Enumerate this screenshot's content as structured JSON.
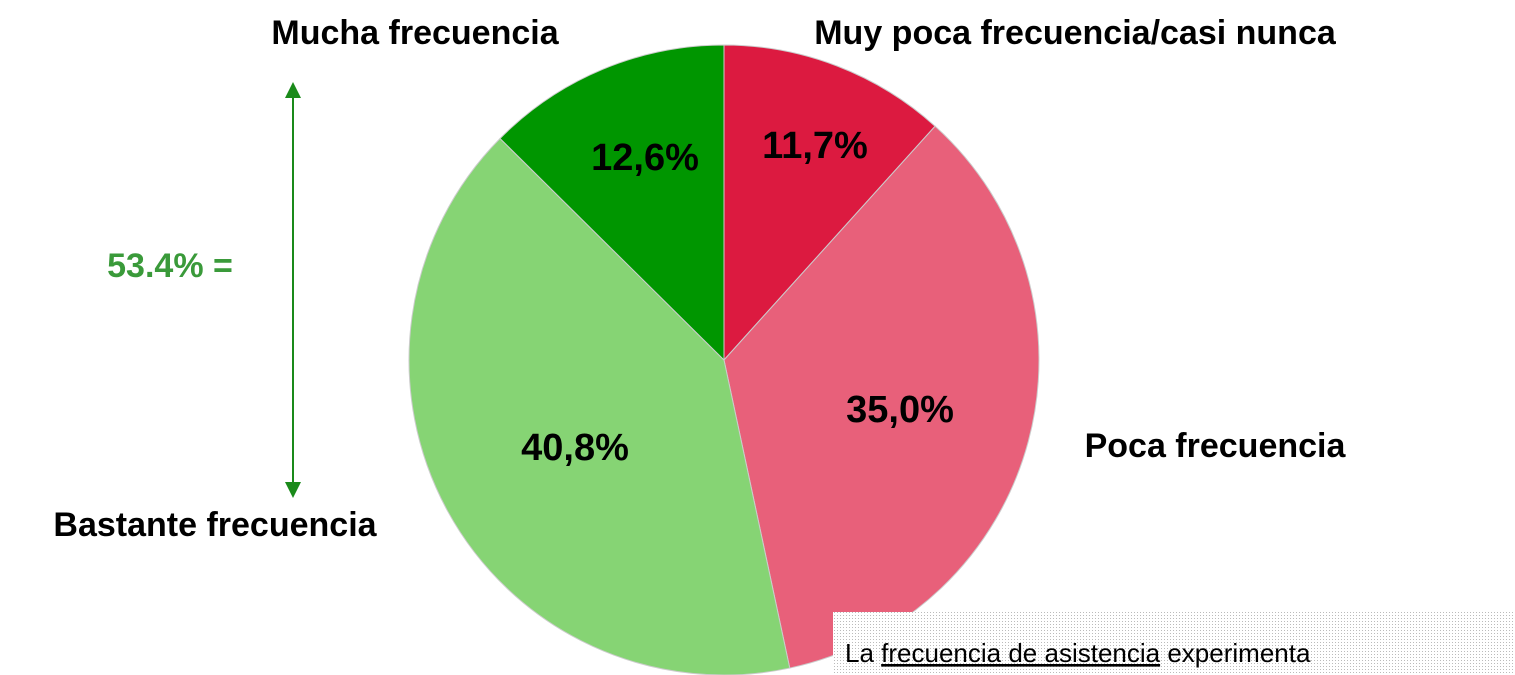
{
  "chart_data": {
    "type": "pie",
    "categories": [
      "Muy poca frecuencia/casi nunca",
      "Poca frecuencia",
      "Bastante frecuencia",
      "Mucha frecuencia"
    ],
    "values": [
      11.7,
      35.0,
      40.8,
      12.6
    ],
    "value_labels": [
      "11,7%",
      "35,0%",
      "40,8%",
      "12,6%"
    ],
    "colors": [
      "#dc1a40",
      "#e8607a",
      "#86d474",
      "#009600"
    ],
    "annotation": "53.4% =",
    "note": {
      "before": "La",
      "underlined": "frecuencia de asistencia",
      "after": "experimenta"
    }
  }
}
